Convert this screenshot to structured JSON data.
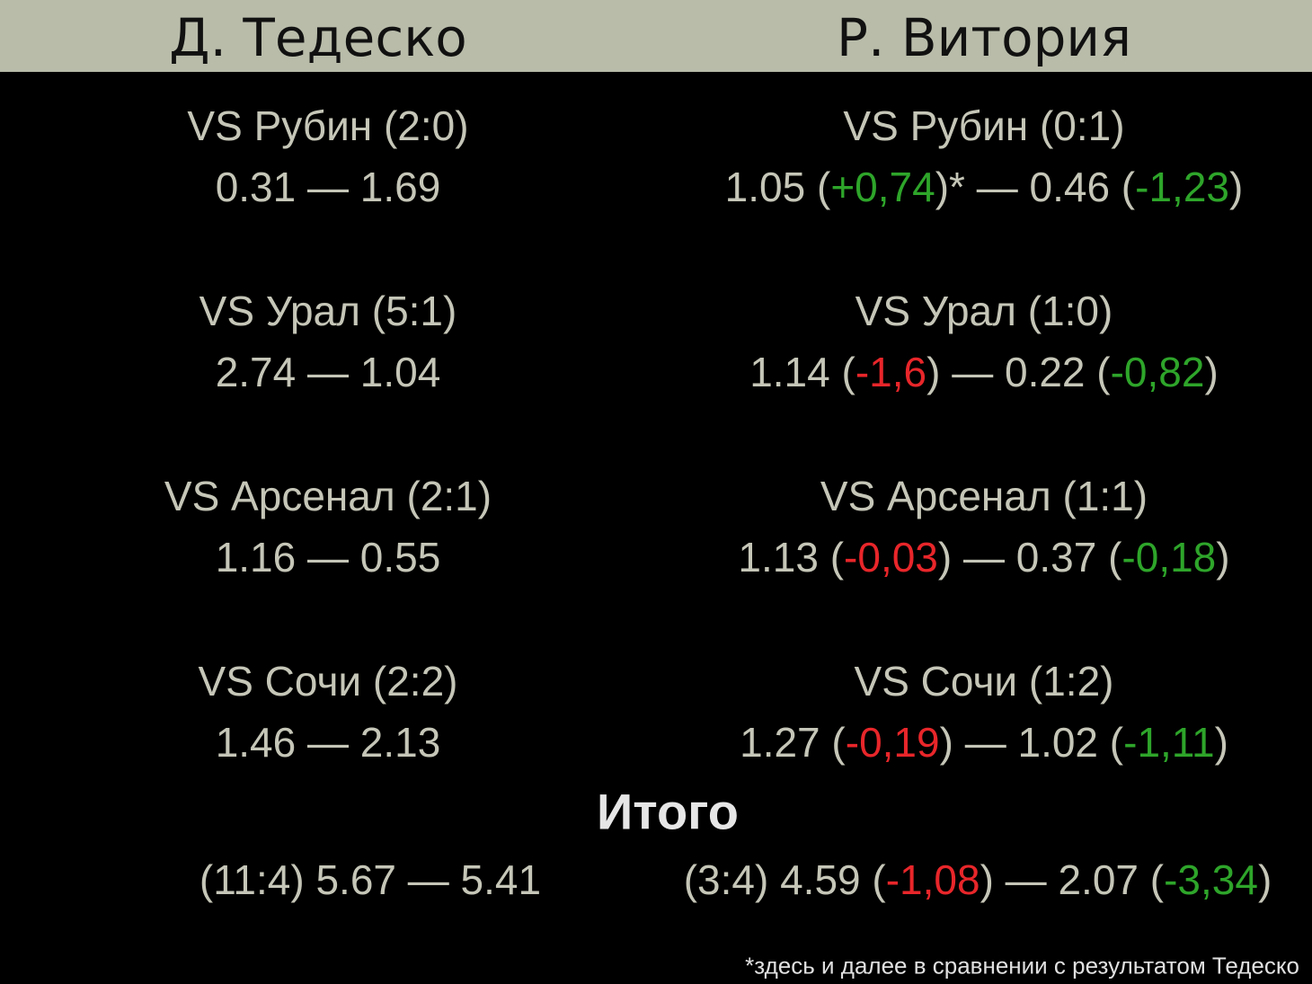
{
  "header": {
    "left": "Д. Тедеско",
    "right": "Р. Витория"
  },
  "matches": [
    {
      "left": {
        "title": "VS Рубин (2:0)",
        "line": [
          {
            "text": "0.31 — 1.69"
          }
        ]
      },
      "right": {
        "title": "VS Рубин (0:1)",
        "line": [
          {
            "text": "1.05 ("
          },
          {
            "text": "+0,74",
            "color": "#2ea52a"
          },
          {
            "text": ")* — 0.46 ("
          },
          {
            "text": "-1,23",
            "color": "#2ea52a"
          },
          {
            "text": ")"
          }
        ]
      }
    },
    {
      "left": {
        "title": "VS Урал (5:1)",
        "line": [
          {
            "text": "2.74 — 1.04"
          }
        ]
      },
      "right": {
        "title": "VS Урал (1:0)",
        "line": [
          {
            "text": "1.14 ("
          },
          {
            "text": "-1,6",
            "color": "#e8262a"
          },
          {
            "text": ") — 0.22 ("
          },
          {
            "text": "-0,82",
            "color": "#2ea52a"
          },
          {
            "text": ")"
          }
        ]
      }
    },
    {
      "left": {
        "title": "VS Арсенал (2:1)",
        "line": [
          {
            "text": "1.16 — 0.55"
          }
        ]
      },
      "right": {
        "title": "VS Арсенал (1:1)",
        "line": [
          {
            "text": "1.13 ("
          },
          {
            "text": "-0,03",
            "color": "#e8262a"
          },
          {
            "text": ") — 0.37 ("
          },
          {
            "text": "-0,18",
            "color": "#2ea52a"
          },
          {
            "text": ")"
          }
        ]
      }
    },
    {
      "left": {
        "title": "VS Сочи (2:2)",
        "line": [
          {
            "text": "1.46 — 2.13"
          }
        ]
      },
      "right": {
        "title": "VS Сочи (1:2)",
        "line": [
          {
            "text": "1.27 ("
          },
          {
            "text": "-0,19",
            "color": "#e8262a"
          },
          {
            "text": ") — 1.02 ("
          },
          {
            "text": "-1,11",
            "color": "#2ea52a"
          },
          {
            "text": ")"
          }
        ]
      }
    }
  ],
  "summary": {
    "title": "Итого",
    "left": [
      {
        "text": "(11:4) 5.67 — 5.41"
      }
    ],
    "right": [
      {
        "text": "(3:4) 4.59 ("
      },
      {
        "text": "-1,08",
        "color": "#e8262a"
      },
      {
        "text": ") — 2.07 ("
      },
      {
        "text": "-3,34",
        "color": "#2ea52a"
      },
      {
        "text": ")"
      }
    ]
  },
  "footnote": "*здесь и далее в сравнении с результатом Тедеско"
}
